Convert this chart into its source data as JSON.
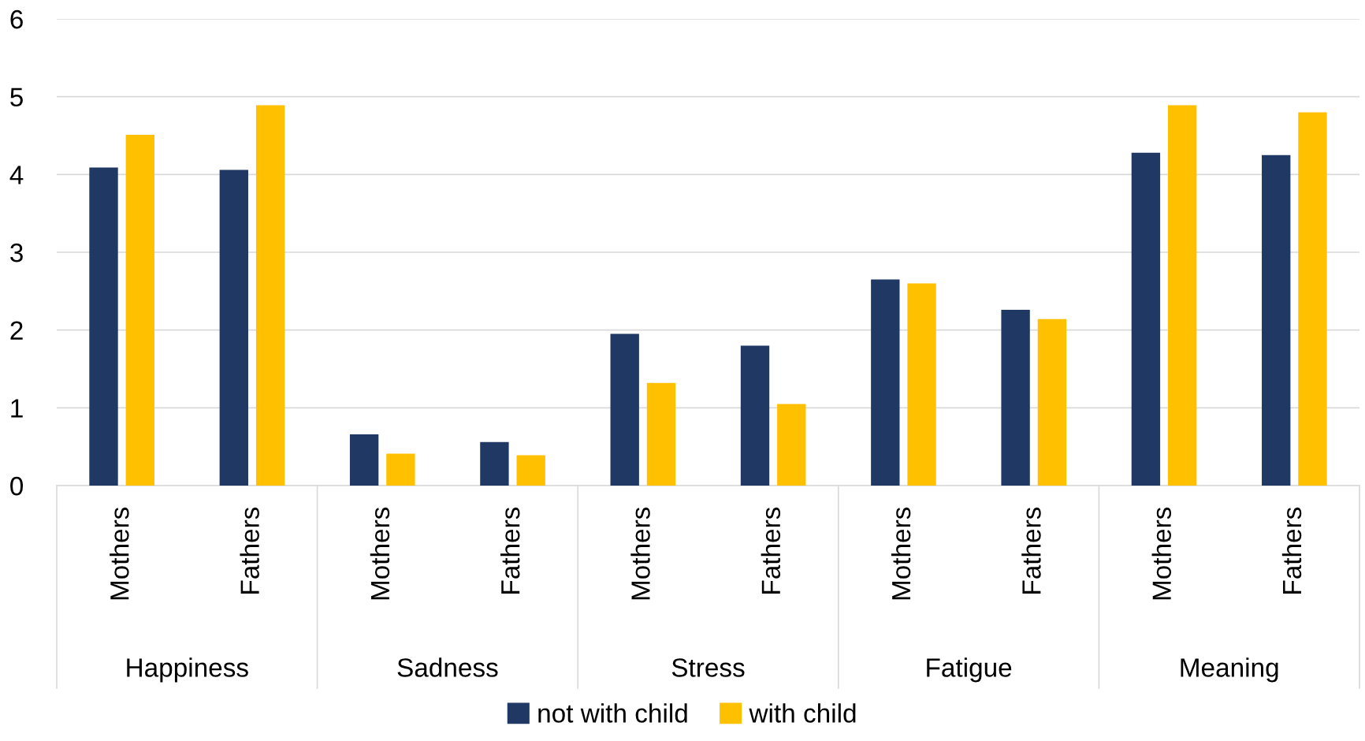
{
  "chart_data": {
    "type": "bar",
    "categories": [
      "Mothers",
      "Fathers",
      "Mothers",
      "Fathers",
      "Mothers",
      "Fathers",
      "Mothers",
      "Fathers",
      "Mothers",
      "Fathers"
    ],
    "annotations": [
      "Happiness",
      "Sadness",
      "Stress",
      "Fatigue",
      "Meaning"
    ],
    "series": [
      {
        "name": "not with child",
        "color": "#203864",
        "values": [
          4.09,
          4.06,
          0.66,
          0.56,
          1.95,
          1.8,
          2.65,
          2.26,
          4.28,
          4.25
        ]
      },
      {
        "name": "with child",
        "color": "#ffc000",
        "values": [
          4.51,
          4.89,
          0.41,
          0.39,
          1.32,
          1.05,
          2.6,
          2.14,
          4.89,
          4.8
        ]
      }
    ],
    "ylim": [
      0,
      6
    ],
    "yticks": [
      0,
      1,
      2,
      3,
      4,
      5,
      6
    ],
    "grid": "y",
    "legend": "bottom"
  }
}
